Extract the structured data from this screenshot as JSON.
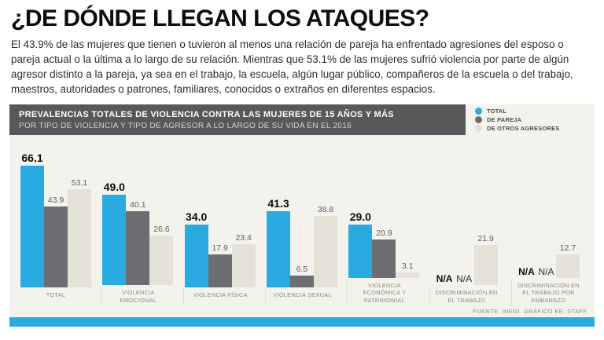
{
  "page": {
    "title": "¿DE DÓNDE LLEGAN LOS ATAQUES?",
    "intro": "El 43.9% de las mujeres que tienen o tuvieron al menos una relación de pareja ha enfrentado agresiones del esposo o pareja actual o la última a lo largo de su relación. Mientras que 53.1% de las mujeres sufrió violencia por parte de algún agresor distinto a la pareja, ya sea en el trabajo, la escuela, algún lugar público, compañeros de la escuela o del trabajo, maestros, autoridades o patrones, familiares, conocidos o extraños en diferentes espacios.",
    "footer": "FUENTE: INEGI. GRÁFICO EE: STAFF."
  },
  "panel": {
    "header_line1": "PREVALENCIAS TOTALES DE VIOLENCIA CONTRA LAS MUJERES DE 15 AÑOS Y MÁS",
    "header_line2": "POR TIPO DE VIOLENCIA Y TIPO DE AGRESOR A LO LARGO DE SU VIDA EN EL 2016"
  },
  "chart_data": {
    "type": "bar",
    "title": "PREVALENCIAS TOTALES DE VIOLENCIA CONTRA LAS MUJERES DE 15 AÑOS Y MÁS",
    "subtitle": "POR TIPO DE VIOLENCIA Y TIPO DE AGRESOR A LO LARGO DE SU VIDA EN EL 2016",
    "categories": [
      "TOTAL",
      "VIOLENCIA EMOCIONAL",
      "VIOLENCIA FÍSICA",
      "VIOLENCIA SEXUAL",
      "VIOLENCIA ECONÓMICA Y PATRIMONIAL",
      "DISCRIMINACIÓN EN EL TRABAJO",
      "DISCRIMINACIÓN EN EL TRABAJO POR EMBARAZO"
    ],
    "series": [
      {
        "name": "TOTAL",
        "color": "#29abe2",
        "values": [
          66.1,
          49.0,
          34.0,
          41.3,
          29.0,
          null,
          null
        ]
      },
      {
        "name": "DE PAREJA",
        "color": "#6d6e71",
        "values": [
          43.9,
          40.1,
          17.9,
          6.5,
          20.9,
          null,
          null
        ]
      },
      {
        "name": "DE OTROS AGRESORES",
        "color": "#e4e1d7",
        "values": [
          53.1,
          26.6,
          23.4,
          38.8,
          3.1,
          21.9,
          12.7
        ]
      }
    ],
    "na_label": "N/A",
    "ylim": [
      0,
      70
    ],
    "legend_position": "top-right",
    "grid": false,
    "accent_color": "#29abe2"
  }
}
